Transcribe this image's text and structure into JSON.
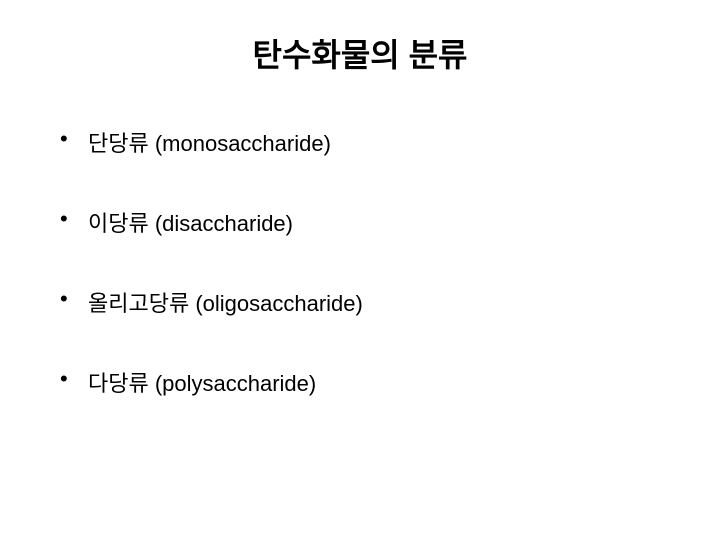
{
  "slide": {
    "title": "탄수화물의 분류",
    "title_fontsize": 32,
    "title_color": "#000000",
    "background_color": "#ffffff",
    "bullets": [
      {
        "text": "단당류 (monosaccharide)"
      },
      {
        "text": "이당류 (disaccharide)"
      },
      {
        "text": "올리고당류 (oligosaccharide)"
      },
      {
        "text": "다당류 (polysaccharide)"
      }
    ],
    "bullet_fontsize": 22,
    "bullet_color": "#000000",
    "bullet_spacing": 48
  }
}
